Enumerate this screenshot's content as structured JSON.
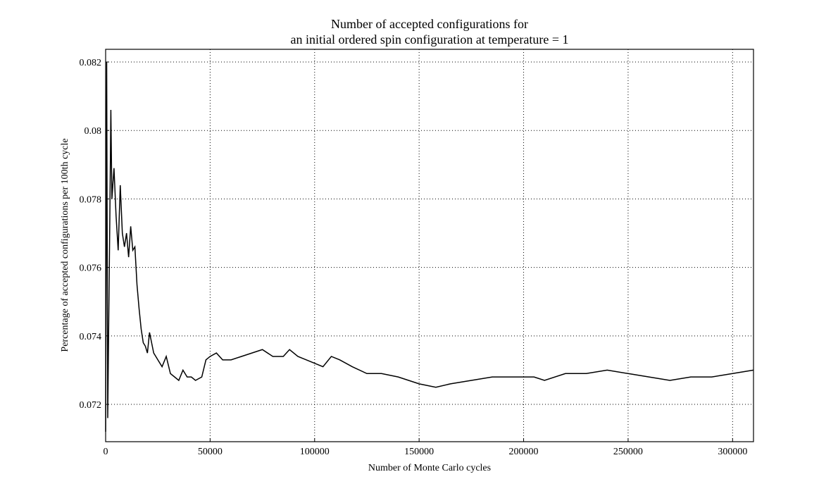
{
  "chart_data": {
    "type": "line",
    "title": [
      "Number of accepted configurations for",
      "an initial ordered spin configuration at temperature = 1"
    ],
    "xlabel": "Number of Monte Carlo cycles",
    "ylabel": "Percentage of accepted configurations per 100th cycle",
    "x": [
      0,
      500,
      1000,
      2000,
      2500,
      3000,
      4000,
      5000,
      6000,
      7000,
      8000,
      9000,
      10000,
      11000,
      12000,
      13000,
      14000,
      15000,
      16000,
      17000,
      18000,
      19000,
      20000,
      21000,
      22000,
      23000,
      25000,
      27000,
      29000,
      31000,
      33000,
      35000,
      37000,
      39000,
      41000,
      43000,
      46000,
      48000,
      50000,
      53000,
      56000,
      60000,
      65000,
      70000,
      75000,
      80000,
      85000,
      88000,
      92000,
      96000,
      100000,
      104000,
      108000,
      112000,
      118000,
      125000,
      132000,
      140000,
      150000,
      158000,
      165000,
      175000,
      185000,
      195000,
      205000,
      210000,
      220000,
      230000,
      240000,
      250000,
      260000,
      270000,
      280000,
      290000,
      300000,
      310000
    ],
    "series": [
      {
        "name": "accepted",
        "color": "#000000",
        "values": [
          0.0712,
          0.082,
          0.0716,
          0.0774,
          0.0806,
          0.078,
          0.0789,
          0.0775,
          0.0765,
          0.0784,
          0.077,
          0.0766,
          0.077,
          0.0763,
          0.0772,
          0.0765,
          0.0766,
          0.0755,
          0.0748,
          0.0742,
          0.0738,
          0.0737,
          0.0735,
          0.0741,
          0.0738,
          0.0735,
          0.0733,
          0.0731,
          0.0734,
          0.0729,
          0.0728,
          0.0727,
          0.073,
          0.0728,
          0.0728,
          0.0727,
          0.0728,
          0.0733,
          0.0734,
          0.0735,
          0.0733,
          0.0733,
          0.0734,
          0.0735,
          0.0736,
          0.0734,
          0.0734,
          0.0736,
          0.0734,
          0.0733,
          0.0732,
          0.0731,
          0.0734,
          0.0733,
          0.0731,
          0.0729,
          0.0729,
          0.0728,
          0.0726,
          0.0725,
          0.0726,
          0.0727,
          0.0728,
          0.0728,
          0.0728,
          0.0727,
          0.0729,
          0.0729,
          0.073,
          0.0729,
          0.0728,
          0.0727,
          0.0728,
          0.0728,
          0.0729,
          0.073
        ]
      }
    ],
    "xlim": [
      0,
      310000
    ],
    "ylim": [
      0.07091,
      0.08237
    ],
    "xticks": [
      0,
      50000,
      100000,
      150000,
      200000,
      250000,
      300000
    ],
    "yticks": [
      0.072,
      0.074,
      0.076,
      0.078,
      0.08,
      0.082
    ],
    "grid": true
  }
}
